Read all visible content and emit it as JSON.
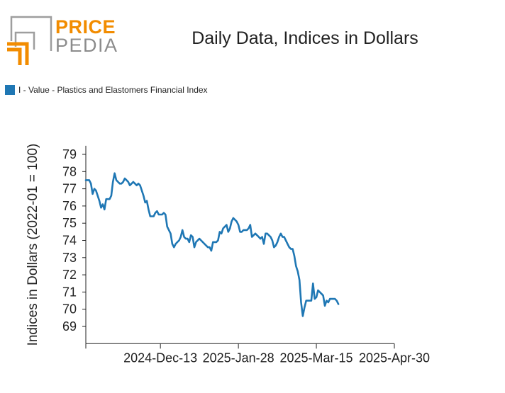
{
  "logo": {
    "line1": "PRICE",
    "line2": "PEDIA"
  },
  "chart_data": {
    "type": "line",
    "title": "Daily Data, Indices in Dollars",
    "ylabel": "Indices in Dollars (2022-01 = 100)",
    "xlabel": "",
    "ylim": [
      68,
      79.5
    ],
    "yticks": [
      69,
      70,
      71,
      72,
      73,
      74,
      75,
      76,
      77,
      78,
      79
    ],
    "xlim": [
      "2024-10-30",
      "2025-04-30"
    ],
    "xticks": [
      {
        "date": "2024-10-30",
        "label": ""
      },
      {
        "date": "2024-12-13",
        "label": "2024-Dec-13"
      },
      {
        "date": "2025-01-28",
        "label": "2025-Jan-28"
      },
      {
        "date": "2025-03-15",
        "label": "2025-Mar-15"
      },
      {
        "date": "2025-04-30",
        "label": "2025-Apr-30"
      }
    ],
    "grid": false,
    "legend_position": "top-left",
    "colors": {
      "series": "#1f77b4"
    },
    "series": [
      {
        "name": "I - Value - Plastics and Elastomers Financial Index",
        "points": [
          [
            "2024-10-30",
            77.5
          ],
          [
            "2024-10-31",
            77.5
          ],
          [
            "2024-11-01",
            77.5
          ],
          [
            "2024-11-02",
            77.3
          ],
          [
            "2024-11-03",
            76.7
          ],
          [
            "2024-11-04",
            77.0
          ],
          [
            "2024-11-05",
            76.9
          ],
          [
            "2024-11-06",
            76.6
          ],
          [
            "2024-11-07",
            76.3
          ],
          [
            "2024-11-08",
            75.9
          ],
          [
            "2024-11-09",
            76.1
          ],
          [
            "2024-11-10",
            75.8
          ],
          [
            "2024-11-11",
            76.4
          ],
          [
            "2024-11-12",
            76.4
          ],
          [
            "2024-11-13",
            76.4
          ],
          [
            "2024-11-14",
            76.6
          ],
          [
            "2024-11-15",
            77.4
          ],
          [
            "2024-11-16",
            77.9
          ],
          [
            "2024-11-17",
            77.5
          ],
          [
            "2024-11-18",
            77.4
          ],
          [
            "2024-11-19",
            77.3
          ],
          [
            "2024-11-20",
            77.3
          ],
          [
            "2024-11-21",
            77.4
          ],
          [
            "2024-11-22",
            77.6
          ],
          [
            "2024-11-23",
            77.5
          ],
          [
            "2024-11-24",
            77.4
          ],
          [
            "2024-11-25",
            77.2
          ],
          [
            "2024-11-26",
            77.3
          ],
          [
            "2024-11-27",
            77.4
          ],
          [
            "2024-11-28",
            77.3
          ],
          [
            "2024-11-29",
            77.2
          ],
          [
            "2024-11-30",
            77.3
          ],
          [
            "2024-12-01",
            77.2
          ],
          [
            "2024-12-02",
            76.9
          ],
          [
            "2024-12-03",
            76.6
          ],
          [
            "2024-12-04",
            76.2
          ],
          [
            "2024-12-05",
            76.3
          ],
          [
            "2024-12-06",
            75.8
          ],
          [
            "2024-12-07",
            75.4
          ],
          [
            "2024-12-08",
            75.4
          ],
          [
            "2024-12-09",
            75.4
          ],
          [
            "2024-12-10",
            75.6
          ],
          [
            "2024-12-11",
            75.7
          ],
          [
            "2024-12-12",
            75.5
          ],
          [
            "2024-12-13",
            75.5
          ],
          [
            "2024-12-14",
            75.5
          ],
          [
            "2024-12-15",
            75.6
          ],
          [
            "2024-12-16",
            75.5
          ],
          [
            "2024-12-17",
            74.8
          ],
          [
            "2024-12-18",
            74.6
          ],
          [
            "2024-12-19",
            74.4
          ],
          [
            "2024-12-20",
            73.8
          ],
          [
            "2024-12-21",
            73.6
          ],
          [
            "2024-12-22",
            73.8
          ],
          [
            "2024-12-23",
            73.9
          ],
          [
            "2024-12-24",
            74.0
          ],
          [
            "2024-12-25",
            74.2
          ],
          [
            "2024-12-26",
            74.6
          ],
          [
            "2024-12-27",
            74.2
          ],
          [
            "2024-12-28",
            74.1
          ],
          [
            "2024-12-29",
            74.1
          ],
          [
            "2024-12-30",
            73.9
          ],
          [
            "2024-12-31",
            74.3
          ],
          [
            "2025-01-01",
            74.2
          ],
          [
            "2025-01-02",
            73.6
          ],
          [
            "2025-01-03",
            73.9
          ],
          [
            "2025-01-04",
            74.0
          ],
          [
            "2025-01-05",
            74.1
          ],
          [
            "2025-01-06",
            74.0
          ],
          [
            "2025-01-07",
            73.9
          ],
          [
            "2025-01-08",
            73.8
          ],
          [
            "2025-01-09",
            73.7
          ],
          [
            "2025-01-10",
            73.6
          ],
          [
            "2025-01-11",
            73.6
          ],
          [
            "2025-01-12",
            73.4
          ],
          [
            "2025-01-13",
            73.9
          ],
          [
            "2025-01-14",
            73.9
          ],
          [
            "2025-01-15",
            73.9
          ],
          [
            "2025-01-16",
            74.0
          ],
          [
            "2025-01-17",
            74.5
          ],
          [
            "2025-01-18",
            74.4
          ],
          [
            "2025-01-19",
            74.7
          ],
          [
            "2025-01-20",
            74.8
          ],
          [
            "2025-01-21",
            74.9
          ],
          [
            "2025-01-22",
            74.5
          ],
          [
            "2025-01-23",
            74.7
          ],
          [
            "2025-01-24",
            75.1
          ],
          [
            "2025-01-25",
            75.3
          ],
          [
            "2025-01-26",
            75.2
          ],
          [
            "2025-01-27",
            75.1
          ],
          [
            "2025-01-28",
            74.9
          ],
          [
            "2025-01-29",
            74.5
          ],
          [
            "2025-01-30",
            74.5
          ],
          [
            "2025-01-31",
            74.6
          ],
          [
            "2025-02-01",
            74.6
          ],
          [
            "2025-02-02",
            74.6
          ],
          [
            "2025-02-03",
            74.7
          ],
          [
            "2025-02-04",
            74.9
          ],
          [
            "2025-02-05",
            74.2
          ],
          [
            "2025-02-06",
            74.3
          ],
          [
            "2025-02-07",
            74.4
          ],
          [
            "2025-02-08",
            74.3
          ],
          [
            "2025-02-09",
            74.2
          ],
          [
            "2025-02-10",
            74.1
          ],
          [
            "2025-02-11",
            74.2
          ],
          [
            "2025-02-12",
            73.8
          ],
          [
            "2025-02-13",
            74.4
          ],
          [
            "2025-02-14",
            74.4
          ],
          [
            "2025-02-15",
            74.3
          ],
          [
            "2025-02-16",
            74.2
          ],
          [
            "2025-02-17",
            74.0
          ],
          [
            "2025-02-18",
            73.6
          ],
          [
            "2025-02-19",
            73.7
          ],
          [
            "2025-02-20",
            73.9
          ],
          [
            "2025-02-21",
            74.2
          ],
          [
            "2025-02-22",
            74.4
          ],
          [
            "2025-02-23",
            74.2
          ],
          [
            "2025-02-24",
            74.2
          ],
          [
            "2025-02-25",
            74.0
          ],
          [
            "2025-02-26",
            73.8
          ],
          [
            "2025-02-27",
            73.6
          ],
          [
            "2025-02-28",
            73.5
          ],
          [
            "2025-03-01",
            73.5
          ],
          [
            "2025-03-02",
            73.1
          ],
          [
            "2025-03-03",
            72.5
          ],
          [
            "2025-03-04",
            72.2
          ],
          [
            "2025-03-05",
            71.7
          ],
          [
            "2025-03-06",
            70.4
          ],
          [
            "2025-03-07",
            69.6
          ],
          [
            "2025-03-08",
            70.1
          ],
          [
            "2025-03-09",
            70.5
          ],
          [
            "2025-03-10",
            70.5
          ],
          [
            "2025-03-11",
            70.5
          ],
          [
            "2025-03-12",
            70.5
          ],
          [
            "2025-03-13",
            71.5
          ],
          [
            "2025-03-14",
            70.6
          ],
          [
            "2025-03-15",
            70.7
          ],
          [
            "2025-03-16",
            71.1
          ],
          [
            "2025-03-17",
            71.0
          ],
          [
            "2025-03-18",
            70.9
          ],
          [
            "2025-03-19",
            70.8
          ],
          [
            "2025-03-20",
            70.2
          ],
          [
            "2025-03-21",
            70.5
          ],
          [
            "2025-03-22",
            70.4
          ],
          [
            "2025-03-23",
            70.6
          ],
          [
            "2025-03-24",
            70.6
          ],
          [
            "2025-03-25",
            70.6
          ],
          [
            "2025-03-26",
            70.6
          ],
          [
            "2025-03-27",
            70.5
          ],
          [
            "2025-03-28",
            70.3
          ]
        ]
      }
    ]
  }
}
